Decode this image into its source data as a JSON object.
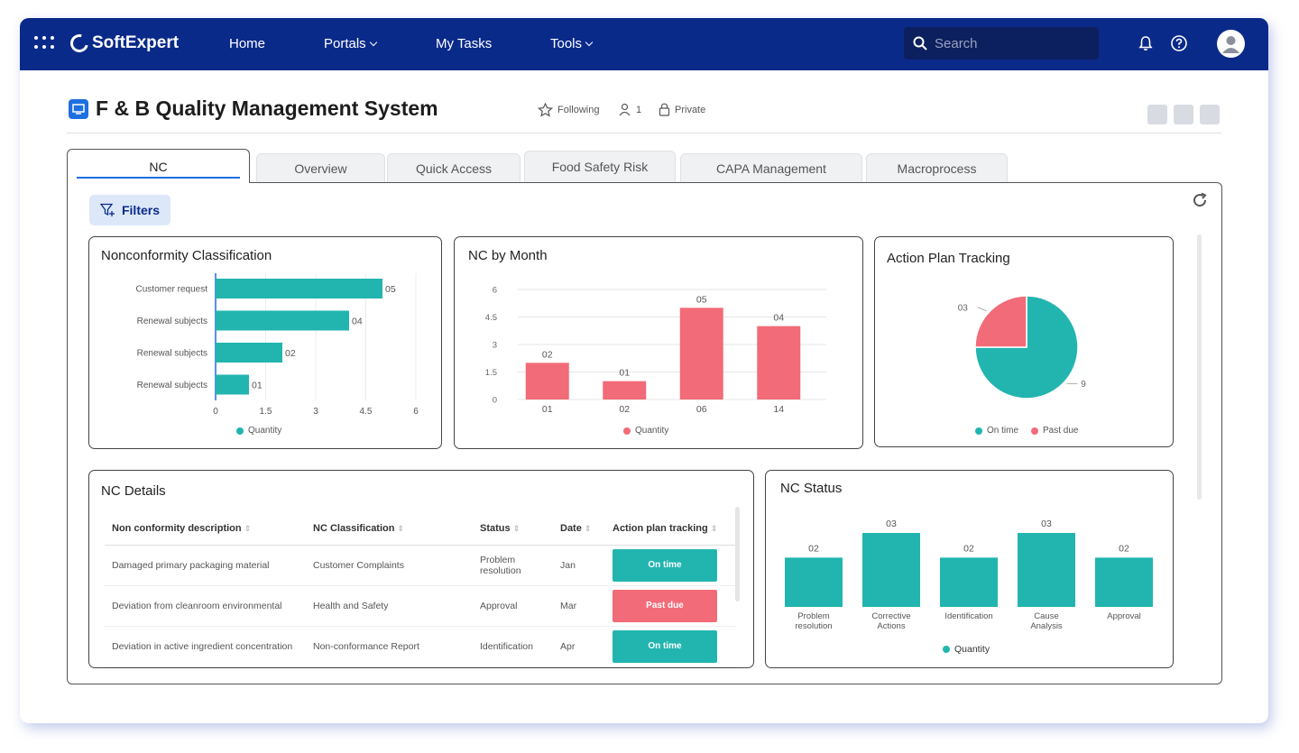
{
  "topbar": {
    "brand": "SoftExpert",
    "nav": [
      {
        "label": "Home",
        "dropdown": false
      },
      {
        "label": "Portals",
        "dropdown": true
      },
      {
        "label": "My Tasks",
        "dropdown": false
      },
      {
        "label": "Tools",
        "dropdown": true
      }
    ],
    "search_placeholder": "Search"
  },
  "header": {
    "title": "F & B Quality Management System",
    "following": "Following",
    "members": "1",
    "privacy": "Private"
  },
  "tabs": [
    {
      "label": "NC",
      "active": true
    },
    {
      "label": "Overview",
      "active": false
    },
    {
      "label": "Quick Access",
      "active": false
    },
    {
      "label": "Food Safety Risk",
      "active": false
    },
    {
      "label": "CAPA Management",
      "active": false
    },
    {
      "label": "Macroprocess",
      "active": false
    }
  ],
  "filters_label": "Filters",
  "colors": {
    "teal": "#22b5b0",
    "red": "#f26b78",
    "navy": "#0a2a8a"
  },
  "nonconformity_classification": {
    "title": "Nonconformity Classification",
    "legend": "Quantity",
    "chart_data": {
      "type": "bar",
      "orientation": "horizontal",
      "categories": [
        "Customer request",
        "Renewal subjects",
        "Renewal subjects",
        "Renewal subjects"
      ],
      "values": [
        5,
        4,
        2,
        1
      ],
      "value_labels": [
        "05",
        "04",
        "02",
        "01"
      ],
      "xticks": [
        "0",
        "1.5",
        "3",
        "4.5",
        "6"
      ],
      "xlim": [
        0,
        6
      ],
      "series_name": "Quantity"
    }
  },
  "nc_by_month": {
    "title": "NC by Month",
    "legend": "Quantity",
    "chart_data": {
      "type": "bar",
      "categories": [
        "01",
        "02",
        "06",
        "14"
      ],
      "values": [
        2,
        1,
        5,
        4
      ],
      "value_labels": [
        "02",
        "01",
        "05",
        "04"
      ],
      "yticks": [
        "0",
        "1.5",
        "3",
        "4.5",
        "6"
      ],
      "ylim": [
        0,
        6
      ],
      "series_name": "Quantity"
    }
  },
  "action_plan_tracking": {
    "title": "Action Plan Tracking",
    "legend": [
      "On time",
      "Past due"
    ],
    "chart_data": {
      "type": "pie",
      "labels": [
        "On time",
        "Past due"
      ],
      "values": [
        9,
        3
      ],
      "value_labels": [
        "9",
        "03"
      ]
    }
  },
  "nc_details": {
    "title": "NC Details",
    "columns": [
      "Non conformity description",
      "NC Classification",
      "Status",
      "Date",
      "Action plan tracking"
    ],
    "rows": [
      {
        "description": "Damaged primary packaging material",
        "classification": "Customer Complaints",
        "status": "Problem resolution",
        "date": "Jan",
        "tracking": "On time",
        "tracking_kind": "ok"
      },
      {
        "description": "Deviation from cleanroom environmental",
        "classification": "Health and Safety",
        "status": "Approval",
        "date": "Mar",
        "tracking": "Past due",
        "tracking_kind": "late"
      },
      {
        "description": "Deviation in active ingredient concentration",
        "classification": "Non-conformance Report",
        "status": "Identification",
        "date": "Apr",
        "tracking": "On time",
        "tracking_kind": "ok"
      }
    ]
  },
  "nc_status": {
    "title": "NC Status",
    "legend": "Quantity",
    "chart_data": {
      "type": "bar",
      "categories": [
        "Problem resolution",
        "Corrective Actions",
        "Identification",
        "Cause Analysis",
        "Approval"
      ],
      "category_lines": [
        [
          "Problem",
          "resolution"
        ],
        [
          "Corrective",
          "Actions"
        ],
        [
          "Identification"
        ],
        [
          "Cause",
          "Analysis"
        ],
        [
          "Approval"
        ]
      ],
      "values": [
        2,
        3,
        2,
        3,
        2
      ],
      "value_labels": [
        "02",
        "03",
        "02",
        "03",
        "02"
      ],
      "series_name": "Quantity"
    }
  }
}
